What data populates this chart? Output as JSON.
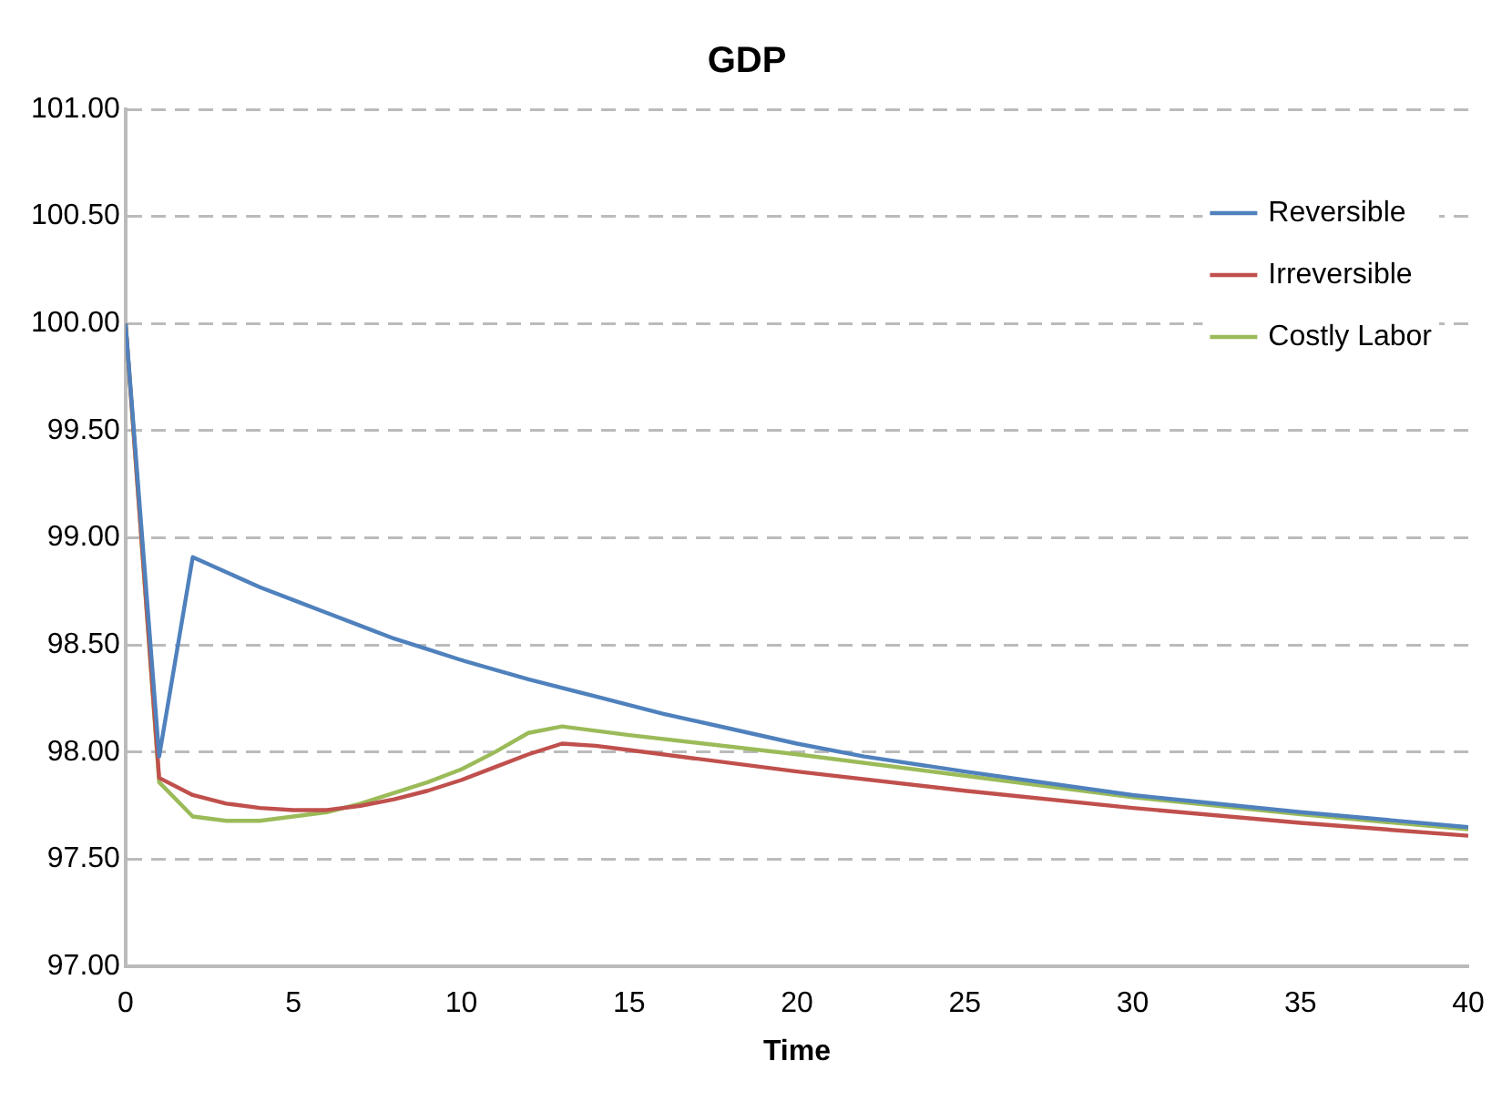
{
  "chart_data": {
    "type": "line",
    "title": "GDP",
    "xlabel": "Time",
    "xlim": [
      0,
      40
    ],
    "xticks": [
      0,
      5,
      10,
      15,
      20,
      25,
      30,
      35,
      40
    ],
    "ylim": [
      97,
      101
    ],
    "yticks": [
      {
        "value": 97,
        "label": "97.00"
      },
      {
        "value": 97.5,
        "label": "97.50"
      },
      {
        "value": 98,
        "label": "98.00"
      },
      {
        "value": 98.5,
        "label": "98.50"
      },
      {
        "value": 99,
        "label": "99.00"
      },
      {
        "value": 99.5,
        "label": "99.50"
      },
      {
        "value": 100,
        "label": "100.00"
      },
      {
        "value": 100.5,
        "label": "100.50"
      },
      {
        "value": 101,
        "label": "101.00"
      }
    ],
    "grid": "y",
    "legend": "top right",
    "marker": "none",
    "line_style": "solid",
    "series": [
      {
        "name": "Reversible",
        "color": "#4f81bd",
        "x": [
          0,
          1,
          2,
          3,
          4,
          5,
          6,
          7,
          8,
          9,
          10,
          12,
          14,
          16,
          18,
          20,
          22,
          25,
          30,
          35,
          40
        ],
        "values": [
          100,
          97.98,
          98.91,
          98.84,
          98.77,
          98.71,
          98.65,
          98.59,
          98.53,
          98.48,
          98.43,
          98.34,
          98.26,
          98.18,
          98.11,
          98.04,
          97.98,
          97.91,
          97.8,
          97.72,
          97.65
        ]
      },
      {
        "name": "Irreversible",
        "color": "#c0504d",
        "x": [
          0,
          1,
          2,
          3,
          4,
          5,
          6,
          7,
          8,
          9,
          10,
          11,
          12,
          13,
          14,
          15,
          20,
          25,
          30,
          35,
          40
        ],
        "values": [
          100,
          97.88,
          97.8,
          97.76,
          97.74,
          97.73,
          97.73,
          97.75,
          97.78,
          97.82,
          97.87,
          97.93,
          97.99,
          98.04,
          98.03,
          98.01,
          97.91,
          97.82,
          97.74,
          97.67,
          97.61
        ]
      },
      {
        "name": "Costly Labor",
        "color": "#9bbb59",
        "x": [
          0,
          1,
          2,
          3,
          4,
          5,
          6,
          7,
          8,
          9,
          10,
          11,
          12,
          13,
          14,
          15,
          20,
          25,
          30,
          35,
          40
        ],
        "values": [
          100,
          97.86,
          97.7,
          97.68,
          97.68,
          97.7,
          97.72,
          97.76,
          97.81,
          97.86,
          97.92,
          98,
          98.09,
          98.12,
          98.1,
          98.08,
          97.99,
          97.89,
          97.79,
          97.71,
          97.64
        ]
      }
    ]
  }
}
